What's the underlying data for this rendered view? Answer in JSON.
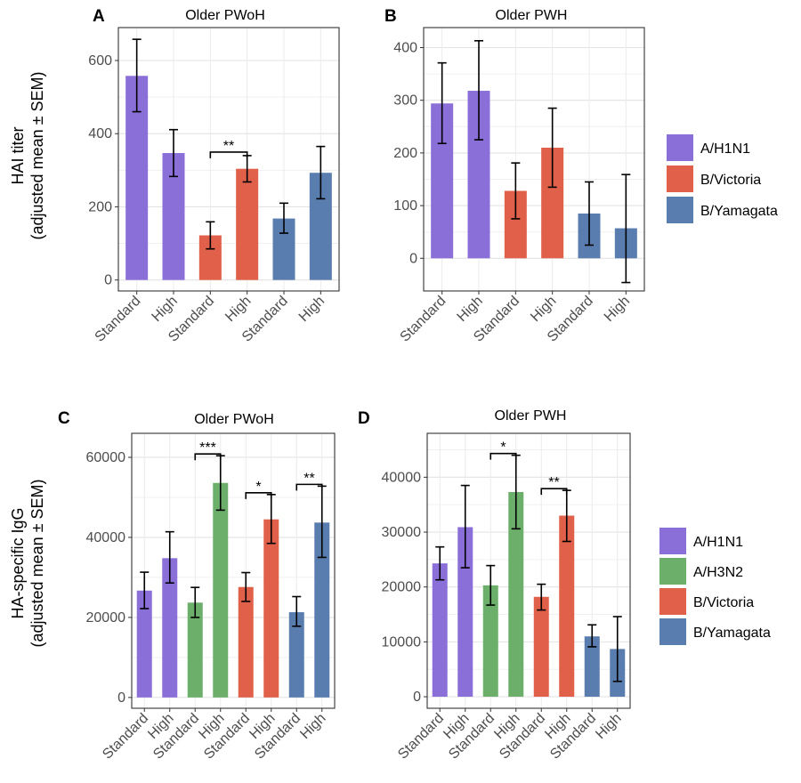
{
  "figure": {
    "y_axis_top": "HAI titer",
    "y_axis_top_2": "(adjusted mean ± SEM)",
    "y_axis_bottom": "HA-specific IgG",
    "y_axis_bottom_2": "(adjusted mean ± SEM)",
    "legend_top": [
      {
        "label": "A/H1N1",
        "color": "#8B6FD9"
      },
      {
        "label": "B/Victoria",
        "color": "#E0604A"
      },
      {
        "label": "B/Yamagata",
        "color": "#5A7DB0"
      }
    ],
    "legend_bottom": [
      {
        "label": "A/H1N1",
        "color": "#8B6FD9"
      },
      {
        "label": "A/H3N2",
        "color": "#6BAF6B"
      },
      {
        "label": "B/Victoria",
        "color": "#E0604A"
      },
      {
        "label": "B/Yamagata",
        "color": "#5A7DB0"
      }
    ]
  },
  "chart_data": [
    {
      "panel": "A",
      "type": "bar",
      "title": "Older PWoH",
      "categories": [
        "Standard",
        "High",
        "Standard",
        "High",
        "Standard",
        "High"
      ],
      "strains": [
        "A/H1N1",
        "A/H1N1",
        "B/Victoria",
        "B/Victoria",
        "B/Yamagata",
        "B/Yamagata"
      ],
      "colors": [
        "#8B6FD9",
        "#8B6FD9",
        "#E0604A",
        "#E0604A",
        "#5A7DB0",
        "#5A7DB0"
      ],
      "values": [
        558,
        347,
        122,
        304,
        168,
        293
      ],
      "err_low": [
        460,
        283,
        85,
        268,
        128,
        222
      ],
      "err_high": [
        658,
        411,
        159,
        340,
        210,
        365
      ],
      "yticks": [
        0,
        200,
        400,
        600
      ],
      "ylim": [
        -30,
        690
      ],
      "significance": [
        {
          "from": 2,
          "to": 3,
          "label": "**"
        }
      ],
      "grid": true
    },
    {
      "panel": "B",
      "type": "bar",
      "title": "Older PWH",
      "categories": [
        "Standard",
        "High",
        "Standard",
        "High",
        "Standard",
        "High"
      ],
      "strains": [
        "A/H1N1",
        "A/H1N1",
        "B/Victoria",
        "B/Victoria",
        "B/Yamagata",
        "B/Yamagata"
      ],
      "colors": [
        "#8B6FD9",
        "#8B6FD9",
        "#E0604A",
        "#E0604A",
        "#5A7DB0",
        "#5A7DB0"
      ],
      "values": [
        294,
        318,
        128,
        210,
        85,
        57
      ],
      "err_low": [
        218,
        225,
        75,
        135,
        25,
        -46
      ],
      "err_high": [
        371,
        413,
        181,
        285,
        145,
        159
      ],
      "yticks": [
        0,
        100,
        200,
        300,
        400
      ],
      "ylim": [
        -62,
        438
      ],
      "significance": [],
      "grid": true
    },
    {
      "panel": "C",
      "type": "bar",
      "title": "Older PWoH",
      "categories": [
        "Standard",
        "High",
        "Standard",
        "High",
        "Standard",
        "High",
        "Standard",
        "High"
      ],
      "strains": [
        "A/H1N1",
        "A/H1N1",
        "A/H3N2",
        "A/H3N2",
        "B/Victoria",
        "B/Victoria",
        "B/Yamagata",
        "B/Yamagata"
      ],
      "colors": [
        "#8B6FD9",
        "#8B6FD9",
        "#6BAF6B",
        "#6BAF6B",
        "#E0604A",
        "#E0604A",
        "#5A7DB0",
        "#5A7DB0"
      ],
      "values": [
        26700,
        34800,
        23700,
        53600,
        27600,
        44500,
        21300,
        43700
      ],
      "err_low": [
        22200,
        28600,
        20000,
        46800,
        24000,
        38500,
        17800,
        35000
      ],
      "err_high": [
        31300,
        41400,
        27500,
        60400,
        31200,
        50700,
        25200,
        52800
      ],
      "yticks": [
        0,
        20000,
        40000,
        60000
      ],
      "ylim": [
        -2700,
        66000
      ],
      "significance": [
        {
          "from": 2,
          "to": 3,
          "label": "***"
        },
        {
          "from": 4,
          "to": 5,
          "label": "*"
        },
        {
          "from": 6,
          "to": 7,
          "label": "**"
        }
      ],
      "grid": true
    },
    {
      "panel": "D",
      "type": "bar",
      "title": "Older PWH",
      "categories": [
        "Standard",
        "High",
        "Standard",
        "High",
        "Standard",
        "High",
        "Standard",
        "High"
      ],
      "strains": [
        "A/H1N1",
        "A/H1N1",
        "A/H3N2",
        "A/H3N2",
        "B/Victoria",
        "B/Victoria",
        "B/Yamagata",
        "B/Yamagata"
      ],
      "colors": [
        "#8B6FD9",
        "#8B6FD9",
        "#6BAF6B",
        "#6BAF6B",
        "#E0604A",
        "#E0604A",
        "#5A7DB0",
        "#5A7DB0"
      ],
      "values": [
        24300,
        30900,
        20300,
        37300,
        18200,
        33000,
        11000,
        8700
      ],
      "err_low": [
        21300,
        23500,
        16700,
        30600,
        15800,
        28300,
        9100,
        2800
      ],
      "err_high": [
        27300,
        38500,
        23900,
        44000,
        20500,
        37600,
        13100,
        14600
      ],
      "yticks": [
        0,
        10000,
        20000,
        30000,
        40000
      ],
      "ylim": [
        -2100,
        48000
      ],
      "significance": [
        {
          "from": 2,
          "to": 3,
          "label": "*"
        },
        {
          "from": 4,
          "to": 5,
          "label": "**"
        }
      ],
      "grid": true
    }
  ]
}
